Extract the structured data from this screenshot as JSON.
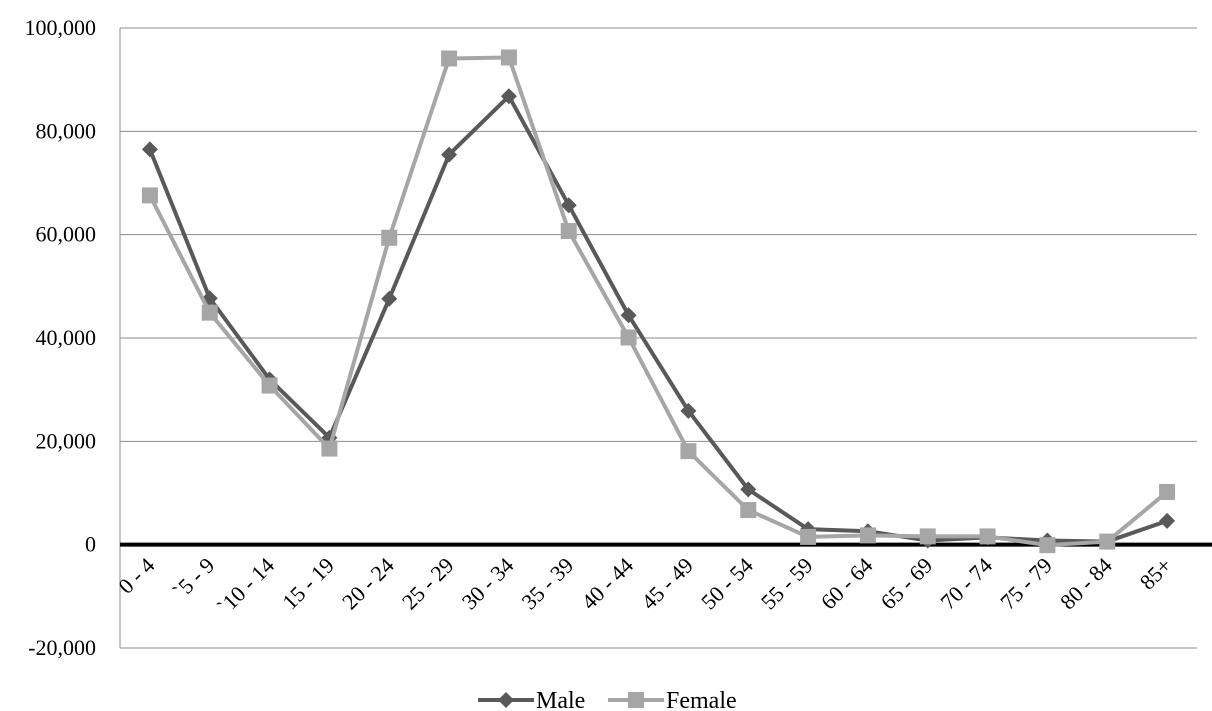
{
  "chart_data": {
    "type": "line",
    "title": "",
    "xlabel": "",
    "ylabel": "",
    "categories": [
      "0 - 4",
      "`5 - 9",
      "`10 - 14",
      "15 - 19",
      "20 - 24",
      "25 - 29",
      "30 - 34",
      "35 - 39",
      "40 - 44",
      "45 - 49",
      "50 - 54",
      "55 - 59",
      "60 - 64",
      "65 - 69",
      "70 - 74",
      "75 - 79",
      "80 - 84",
      "85+"
    ],
    "ylim": [
      -20000,
      100000
    ],
    "yticks": [
      -20000,
      0,
      20000,
      40000,
      60000,
      80000,
      100000
    ],
    "ytick_labels": [
      "-20,000",
      "0",
      "20,000",
      "40,000",
      "60,000",
      "80,000",
      "100,000"
    ],
    "grid": true,
    "legend_position": "bottom",
    "series": [
      {
        "name": "Male",
        "color": "#595959",
        "marker": "diamond",
        "values": [
          76500,
          47700,
          32000,
          20700,
          47600,
          75500,
          86800,
          65700,
          44400,
          25900,
          10700,
          3000,
          2600,
          800,
          1400,
          800,
          600,
          4600
        ]
      },
      {
        "name": "Female",
        "color": "#a6a6a6",
        "marker": "square",
        "values": [
          67600,
          44900,
          30800,
          18600,
          59400,
          94100,
          94300,
          60700,
          40100,
          18100,
          6700,
          1500,
          1800,
          1600,
          1600,
          -100,
          600,
          10200
        ]
      }
    ]
  }
}
